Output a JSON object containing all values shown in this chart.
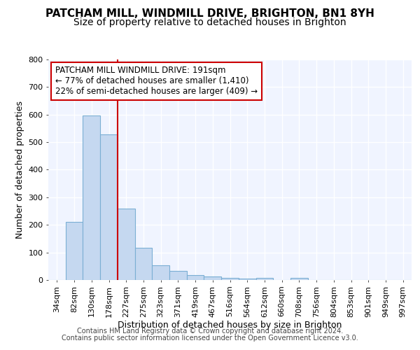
{
  "title1": "PATCHAM MILL, WINDMILL DRIVE, BRIGHTON, BN1 8YH",
  "title2": "Size of property relative to detached houses in Brighton",
  "xlabel": "Distribution of detached houses by size in Brighton",
  "ylabel": "Number of detached properties",
  "bar_labels": [
    "34sqm",
    "82sqm",
    "130sqm",
    "178sqm",
    "227sqm",
    "275sqm",
    "323sqm",
    "371sqm",
    "419sqm",
    "467sqm",
    "516sqm",
    "564sqm",
    "612sqm",
    "660sqm",
    "708sqm",
    "756sqm",
    "804sqm",
    "853sqm",
    "901sqm",
    "949sqm",
    "997sqm"
  ],
  "bar_values": [
    0,
    210,
    597,
    528,
    258,
    117,
    53,
    33,
    18,
    13,
    8,
    5,
    8,
    0,
    8,
    0,
    0,
    0,
    0,
    0,
    0
  ],
  "bar_color": "#c5d8f0",
  "bar_edge_color": "#7bafd4",
  "plot_bg_color": "#f0f4ff",
  "fig_bg_color": "#ffffff",
  "grid_color": "#ffffff",
  "red_line_color": "#cc0000",
  "annotation_text": "PATCHAM MILL WINDMILL DRIVE: 191sqm\n← 77% of detached houses are smaller (1,410)\n22% of semi-detached houses are larger (409) →",
  "annotation_box_facecolor": "#ffffff",
  "annotation_box_edgecolor": "#cc0000",
  "ylim": [
    0,
    800
  ],
  "yticks": [
    0,
    100,
    200,
    300,
    400,
    500,
    600,
    700,
    800
  ],
  "footer_line1": "Contains HM Land Registry data © Crown copyright and database right 2024.",
  "footer_line2": "Contains public sector information licensed under the Open Government Licence v3.0.",
  "title1_fontsize": 11,
  "title2_fontsize": 10,
  "ylabel_fontsize": 9,
  "xlabel_fontsize": 9,
  "tick_fontsize": 8,
  "annot_fontsize": 8.5,
  "footer_fontsize": 7
}
